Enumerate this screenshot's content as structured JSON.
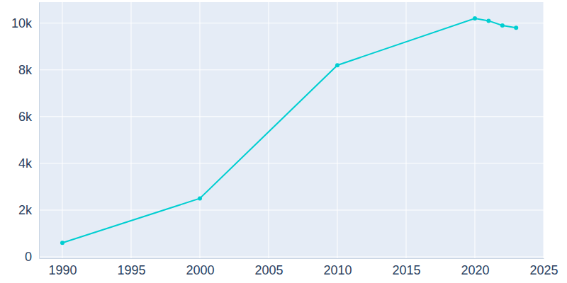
{
  "chart_data": {
    "type": "line",
    "x": [
      1990,
      2000,
      2010,
      2020,
      2021,
      2022,
      2023
    ],
    "values": [
      600,
      2500,
      8200,
      10200,
      10100,
      9900,
      9800
    ],
    "color": "#00ced1",
    "marker": "circle",
    "xlim": [
      1988.3,
      2025
    ],
    "xticks": [
      1990,
      1995,
      2000,
      2005,
      2010,
      2015,
      2020,
      2025
    ],
    "ylim": [
      -60,
      10900
    ],
    "yticks": [
      0,
      {
        "value": 2000,
        "label": "2k"
      },
      {
        "value": 4000,
        "label": "4k"
      },
      {
        "value": 6000,
        "label": "6k"
      },
      {
        "value": 8000,
        "label": "8k"
      },
      {
        "value": 10000,
        "label": "10k"
      }
    ],
    "grid": true
  }
}
